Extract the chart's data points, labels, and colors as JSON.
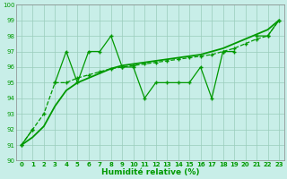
{
  "x": [
    0,
    1,
    2,
    3,
    4,
    5,
    6,
    7,
    8,
    9,
    10,
    11,
    12,
    13,
    14,
    15,
    16,
    17,
    18,
    19,
    20,
    21,
    22,
    23
  ],
  "line_jagged": [
    91,
    92,
    null,
    95,
    97,
    95,
    97,
    97,
    98,
    96,
    96,
    94,
    95,
    95,
    95,
    95,
    96,
    94,
    97,
    97,
    null,
    98,
    98,
    99
  ],
  "line_smooth": [
    91,
    92,
    93,
    95,
    95,
    95.3,
    95.5,
    95.7,
    95.9,
    96.0,
    96.1,
    96.2,
    96.3,
    96.4,
    96.5,
    96.6,
    96.7,
    96.8,
    97.0,
    97.2,
    97.5,
    97.8,
    98.0,
    99.0
  ],
  "line_trend": [
    91,
    91.5,
    92.2,
    93.5,
    94.5,
    95.0,
    95.3,
    95.6,
    95.9,
    96.1,
    96.2,
    96.3,
    96.4,
    96.5,
    96.6,
    96.7,
    96.8,
    97.0,
    97.2,
    97.5,
    97.8,
    98.1,
    98.4,
    99.0
  ],
  "bg_color": "#c8eee8",
  "grid_color": "#99ccbb",
  "line_color": "#009900",
  "ylim": [
    90,
    100
  ],
  "xlim_min": -0.5,
  "xlim_max": 23.5,
  "xlabel": "Humidité relative (%)",
  "yticks": [
    90,
    91,
    92,
    93,
    94,
    95,
    96,
    97,
    98,
    99,
    100
  ],
  "xticks": [
    0,
    1,
    2,
    3,
    4,
    5,
    6,
    7,
    8,
    9,
    10,
    11,
    12,
    13,
    14,
    15,
    16,
    17,
    18,
    19,
    20,
    21,
    22,
    23
  ],
  "tick_fontsize": 5.0,
  "xlabel_fontsize": 6.5,
  "lw_jagged": 0.9,
  "lw_smooth": 0.9,
  "lw_trend": 1.3,
  "marker_size": 2.5
}
